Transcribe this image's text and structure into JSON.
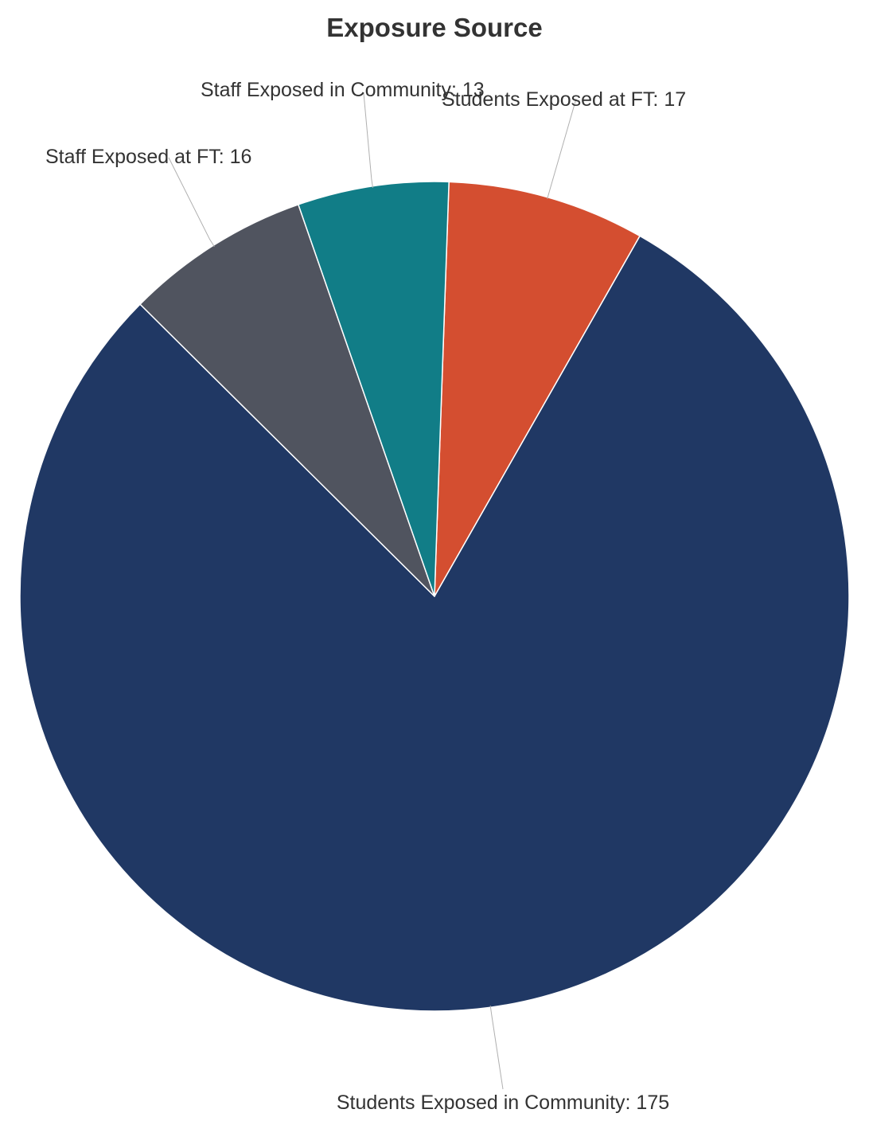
{
  "chart_data": {
    "type": "pie",
    "title": "Exposure Source",
    "slices": [
      {
        "label": "Students Exposed at FT: 17",
        "value": 17,
        "color": "#d44e30"
      },
      {
        "label": "Students Exposed in Community: 175",
        "value": 175,
        "color": "#203864"
      },
      {
        "label": "Staff Exposed at FT: 16",
        "value": 16,
        "color": "#50545f"
      },
      {
        "label": "Staff Exposed in Community: 13",
        "value": 13,
        "color": "#117d87"
      }
    ],
    "start_angle_deg": 2,
    "direction": "clockwise",
    "legend": "none",
    "data_labels": "outside-with-leader-lines"
  }
}
